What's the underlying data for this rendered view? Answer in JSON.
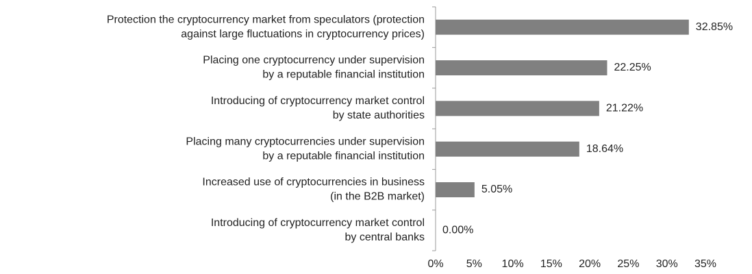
{
  "chart_data": {
    "type": "bar",
    "orientation": "horizontal",
    "color": "#808080",
    "categories": [
      [
        "Protection the cryptocurrency market from speculators (protection",
        "against large fluctuations in cryptocurrency prices)"
      ],
      [
        "Placing one cryptocurrency under supervision",
        "by a reputable financial institution"
      ],
      [
        "Introducing of cryptocurrency market control",
        "by state authorities"
      ],
      [
        "Placing many cryptocurrencies under supervision",
        "by a reputable financial institution"
      ],
      [
        "Increased use of cryptocurrencies in business",
        "(in the B2B market)"
      ],
      [
        "Introducing of cryptocurrency market control",
        "by central banks"
      ]
    ],
    "values": [
      32.85,
      22.25,
      21.22,
      18.64,
      5.05,
      0
    ],
    "value_labels": [
      "32.85%",
      "22.25%",
      "21.22%",
      "18.64%",
      "5.05%",
      "0.00%"
    ],
    "xlim": [
      0,
      35
    ],
    "xticks": [
      {
        "value": 0,
        "label": "0%"
      },
      {
        "value": 5,
        "label": "5%"
      },
      {
        "value": 10,
        "label": "10%"
      },
      {
        "value": 15,
        "label": "15%"
      },
      {
        "value": 20,
        "label": "20%"
      },
      {
        "value": 25,
        "label": "25%"
      },
      {
        "value": 30,
        "label": "30%"
      },
      {
        "value": 35,
        "label": "35%"
      }
    ]
  }
}
